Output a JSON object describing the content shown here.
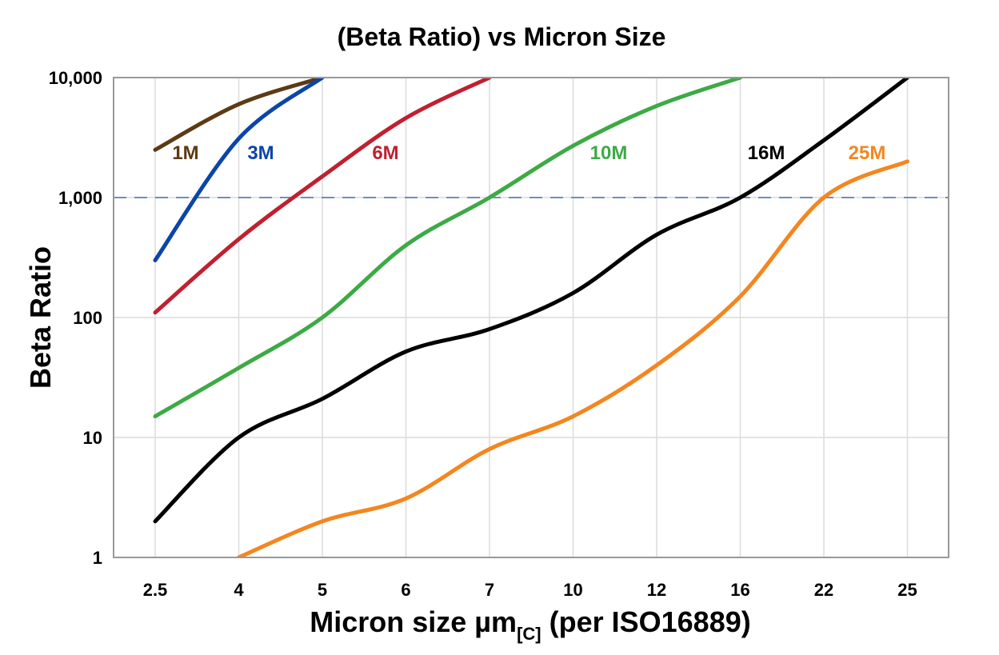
{
  "chart_data": {
    "type": "line",
    "title": "(Beta Ratio) vs Micron Size",
    "xlabel": "Micron size µm",
    "xlabel_subscript": "[C]",
    "xlabel_suffix": " (per ISO16889)",
    "ylabel": "Beta Ratio",
    "yscale": "log",
    "ylim": [
      1,
      10000
    ],
    "yticks": [
      1,
      10,
      100,
      1000,
      10000
    ],
    "ytick_labels": [
      "1",
      "10",
      "100",
      "1,000",
      "10,000"
    ],
    "categories": [
      "2.5",
      "4",
      "5",
      "6",
      "7",
      "10",
      "12",
      "16",
      "22",
      "25"
    ],
    "grid": true,
    "reference_line": {
      "y": 1000,
      "style": "dashed",
      "color": "#4a6fa5"
    },
    "legend": "inline labels",
    "series": [
      {
        "name": "1M",
        "color": "#5c3a14",
        "values": [
          2500,
          6000,
          10000,
          null,
          null,
          null,
          null,
          null,
          null,
          null
        ]
      },
      {
        "name": "3M",
        "color": "#0b45a8",
        "values": [
          300,
          3100,
          10000,
          null,
          null,
          null,
          null,
          null,
          null,
          null
        ]
      },
      {
        "name": "6M",
        "color": "#c0202f",
        "values": [
          110,
          450,
          1500,
          4600,
          10000,
          null,
          null,
          null,
          null,
          null
        ]
      },
      {
        "name": "10M",
        "color": "#3daa45",
        "values": [
          15,
          38,
          100,
          400,
          1000,
          2700,
          5800,
          10000,
          null,
          null
        ]
      },
      {
        "name": "16M",
        "color": "#000000",
        "values": [
          2,
          10,
          21,
          52,
          80,
          160,
          490,
          1000,
          3000,
          10000
        ]
      },
      {
        "name": "25M",
        "color": "#f4861f",
        "values": [
          null,
          1,
          2,
          3.1,
          8,
          15,
          40,
          150,
          1000,
          2000
        ]
      }
    ]
  }
}
